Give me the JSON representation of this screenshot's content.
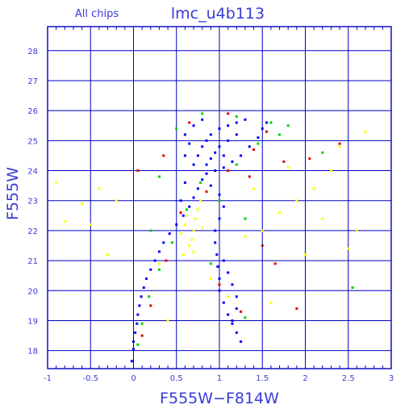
{
  "chart_data": {
    "type": "scatter",
    "title": "lmc_u4b113",
    "subtitle": "All chips",
    "xlabel": "F555W−F814W",
    "ylabel": "F555W",
    "xlim": [
      -1,
      3
    ],
    "ylim": [
      28.8,
      17.4
    ],
    "y_inverted": true,
    "grid": true,
    "x_ticks": [
      -1,
      -0.5,
      0,
      0.5,
      1,
      1.5,
      2,
      2.5,
      3
    ],
    "x_tick_labels": [
      "-1",
      "-0.5",
      "0",
      "0.5",
      "1",
      "1.5",
      "2",
      "2.5",
      "3"
    ],
    "y_ticks": [
      18,
      19,
      20,
      21,
      22,
      23,
      24,
      25,
      26,
      27,
      28
    ],
    "y_tick_labels": [
      "18",
      "19",
      "20",
      "21",
      "22",
      "23",
      "24",
      "25",
      "26",
      "27",
      "28"
    ],
    "colors": {
      "frame": "#0000c0",
      "text": "#3a3ad8",
      "series": [
        "#0000ff",
        "#ffff00",
        "#00d000",
        "#e00000"
      ]
    },
    "series": [
      {
        "color": "#0000ff",
        "values": [
          [
            -0.02,
            17.65
          ],
          [
            0.0,
            18.05
          ],
          [
            0.0,
            18.3
          ],
          [
            0.02,
            18.6
          ],
          [
            0.04,
            18.9
          ],
          [
            0.05,
            19.2
          ],
          [
            0.07,
            19.5
          ],
          [
            0.09,
            19.8
          ],
          [
            0.12,
            20.1
          ],
          [
            0.15,
            20.4
          ],
          [
            0.2,
            20.7
          ],
          [
            0.25,
            21.0
          ],
          [
            0.3,
            21.3
          ],
          [
            0.35,
            21.6
          ],
          [
            0.42,
            21.9
          ],
          [
            0.5,
            22.2
          ],
          [
            0.58,
            22.5
          ],
          [
            0.65,
            22.8
          ],
          [
            0.7,
            23.1
          ],
          [
            0.75,
            23.4
          ],
          [
            0.8,
            23.7
          ],
          [
            0.85,
            23.9
          ],
          [
            0.95,
            24.0
          ],
          [
            1.05,
            24.1
          ],
          [
            1.15,
            24.3
          ],
          [
            1.25,
            24.5
          ],
          [
            1.35,
            24.8
          ],
          [
            1.45,
            25.1
          ],
          [
            1.5,
            25.4
          ],
          [
            1.55,
            25.6
          ],
          [
            0.7,
            24.2
          ],
          [
            0.75,
            24.5
          ],
          [
            0.8,
            24.8
          ],
          [
            0.85,
            25.0
          ],
          [
            0.9,
            25.2
          ],
          [
            1.0,
            25.4
          ],
          [
            1.1,
            25.5
          ],
          [
            1.2,
            25.6
          ],
          [
            1.3,
            25.7
          ],
          [
            0.6,
            25.2
          ],
          [
            0.7,
            25.5
          ],
          [
            0.8,
            25.7
          ],
          [
            0.9,
            23.5
          ],
          [
            1.0,
            23.2
          ],
          [
            1.05,
            22.8
          ],
          [
            1.0,
            22.4
          ],
          [
            0.95,
            22.0
          ],
          [
            0.95,
            21.6
          ],
          [
            0.97,
            21.2
          ],
          [
            0.98,
            20.8
          ],
          [
            1.0,
            20.4
          ],
          [
            1.0,
            20.0
          ],
          [
            1.05,
            19.6
          ],
          [
            1.1,
            19.2
          ],
          [
            1.15,
            18.9
          ],
          [
            1.2,
            18.6
          ],
          [
            1.25,
            18.3
          ],
          [
            1.05,
            21.0
          ],
          [
            1.1,
            20.6
          ],
          [
            1.15,
            20.2
          ],
          [
            1.2,
            19.8
          ],
          [
            1.2,
            19.4
          ],
          [
            1.15,
            19.0
          ],
          [
            0.55,
            23.0
          ],
          [
            0.6,
            23.6
          ],
          [
            0.9,
            24.4
          ],
          [
            1.0,
            24.8
          ],
          [
            1.1,
            25.0
          ],
          [
            1.2,
            25.2
          ],
          [
            0.95,
            24.6
          ],
          [
            1.05,
            24.5
          ],
          [
            0.85,
            24.2
          ],
          [
            0.6,
            24.5
          ],
          [
            0.65,
            24.9
          ]
        ]
      },
      {
        "color": "#ffff00",
        "values": [
          [
            0.55,
            21.9
          ],
          [
            0.6,
            22.2
          ],
          [
            0.62,
            22.5
          ],
          [
            0.65,
            22.8
          ],
          [
            0.68,
            21.7
          ],
          [
            0.7,
            22.0
          ],
          [
            0.72,
            22.4
          ],
          [
            0.75,
            22.7
          ],
          [
            0.78,
            23.0
          ],
          [
            0.8,
            22.1
          ],
          [
            0.65,
            21.5
          ],
          [
            0.58,
            21.2
          ],
          [
            0.7,
            21.3
          ],
          [
            -0.8,
            22.3
          ],
          [
            -0.6,
            22.9
          ],
          [
            -0.4,
            23.4
          ],
          [
            -0.9,
            23.6
          ],
          [
            -0.5,
            22.2
          ],
          [
            -0.2,
            23.0
          ],
          [
            1.7,
            22.6
          ],
          [
            1.9,
            23.0
          ],
          [
            2.2,
            22.4
          ],
          [
            2.5,
            21.4
          ],
          [
            2.6,
            22.0
          ],
          [
            2.4,
            24.8
          ],
          [
            1.8,
            24.1
          ],
          [
            2.1,
            23.4
          ],
          [
            1.3,
            21.8
          ],
          [
            1.5,
            22.0
          ],
          [
            0.9,
            20.4
          ],
          [
            1.1,
            19.8
          ],
          [
            0.4,
            19.0
          ],
          [
            1.6,
            19.6
          ],
          [
            2.0,
            21.2
          ],
          [
            2.7,
            25.3
          ],
          [
            0.3,
            20.9
          ],
          [
            2.3,
            24.0
          ],
          [
            -0.3,
            21.2
          ],
          [
            1.4,
            23.4
          ]
        ]
      },
      {
        "color": "#00d000",
        "values": [
          [
            0.05,
            18.2
          ],
          [
            0.1,
            18.9
          ],
          [
            0.18,
            19.8
          ],
          [
            0.3,
            20.7
          ],
          [
            0.45,
            21.6
          ],
          [
            0.62,
            22.7
          ],
          [
            0.78,
            23.6
          ],
          [
            1.2,
            24.2
          ],
          [
            1.45,
            24.9
          ],
          [
            1.6,
            25.6
          ],
          [
            1.2,
            25.8
          ],
          [
            0.8,
            25.9
          ],
          [
            0.5,
            25.4
          ],
          [
            1.3,
            19.1
          ],
          [
            0.9,
            20.9
          ],
          [
            1.7,
            25.2
          ],
          [
            1.8,
            25.5
          ],
          [
            0.3,
            23.8
          ],
          [
            2.55,
            20.1
          ],
          [
            1.0,
            23.0
          ],
          [
            1.3,
            22.4
          ],
          [
            2.2,
            24.6
          ],
          [
            0.2,
            22.0
          ]
        ]
      },
      {
        "color": "#e00000",
        "values": [
          [
            0.1,
            18.5
          ],
          [
            0.2,
            19.5
          ],
          [
            0.38,
            21.0
          ],
          [
            0.55,
            22.6
          ],
          [
            0.85,
            23.3
          ],
          [
            1.1,
            24.0
          ],
          [
            1.4,
            24.7
          ],
          [
            1.55,
            25.3
          ],
          [
            1.1,
            25.9
          ],
          [
            0.65,
            25.6
          ],
          [
            1.25,
            19.3
          ],
          [
            1.0,
            20.2
          ],
          [
            1.35,
            23.8
          ],
          [
            1.65,
            20.9
          ],
          [
            1.9,
            19.4
          ],
          [
            2.05,
            24.4
          ],
          [
            0.05,
            24.0
          ],
          [
            0.35,
            24.5
          ],
          [
            1.75,
            24.3
          ],
          [
            2.4,
            24.9
          ],
          [
            1.5,
            21.5
          ]
        ]
      }
    ]
  }
}
